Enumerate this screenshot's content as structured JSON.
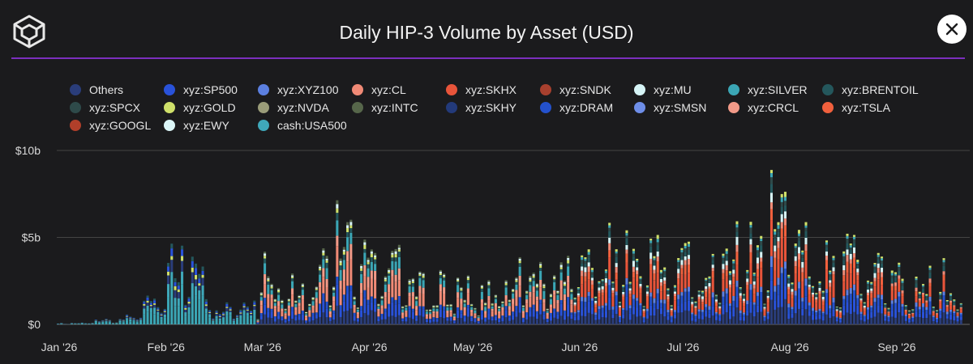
{
  "header": {
    "title": "Daily HIP-3 Volume by Asset (USD)",
    "close_icon": "close-icon",
    "logo_icon": "cube-logo-icon"
  },
  "colors": {
    "accent": "#7b2fbe",
    "background": "#1b1b1d"
  },
  "chart_data": {
    "type": "bar",
    "stacked": true,
    "title": "Daily HIP-3 Volume by Asset (USD)",
    "xlabel": "",
    "ylabel": "",
    "ylim": [
      0,
      10000000000
    ],
    "y_ticks": [
      {
        "value": 0,
        "label": "$0"
      },
      {
        "value": 5000000000,
        "label": "$5b"
      },
      {
        "value": 10000000000,
        "label": "$10b"
      }
    ],
    "x_ticks": [
      "Jan '26",
      "Feb '26",
      "Mar '26",
      "Apr '26",
      "May '26",
      "Jun '26",
      "Jul '26",
      "Aug '26",
      "Sep '26"
    ],
    "grid": true,
    "legend_position": "top",
    "series": [
      {
        "name": "Others",
        "color": "#2a3d7a"
      },
      {
        "name": "xyz:SP500",
        "color": "#2952d9"
      },
      {
        "name": "xyz:XYZ100",
        "color": "#5b7fe0"
      },
      {
        "name": "xyz:CL",
        "color": "#f08a76"
      },
      {
        "name": "xyz:SKHX",
        "color": "#e8543a"
      },
      {
        "name": "xyz:SNDK",
        "color": "#a8402e"
      },
      {
        "name": "xyz:MU",
        "color": "#d6f4f6"
      },
      {
        "name": "xyz:SILVER",
        "color": "#3ba6b5"
      },
      {
        "name": "xyz:BRENTOIL",
        "color": "#24575c"
      },
      {
        "name": "xyz:SPCX",
        "color": "#2e4a4a"
      },
      {
        "name": "xyz:GOLD",
        "color": "#cfe06a"
      },
      {
        "name": "xyz:NVDA",
        "color": "#9a9c79"
      },
      {
        "name": "xyz:INTC",
        "color": "#56664a"
      },
      {
        "name": "xyz:SKHY",
        "color": "#233a7a"
      },
      {
        "name": "xyz:DRAM",
        "color": "#2451cc"
      },
      {
        "name": "xyz:SMSN",
        "color": "#6e8ee8"
      },
      {
        "name": "xyz:CRCL",
        "color": "#f29a88"
      },
      {
        "name": "xyz:TSLA",
        "color": "#f0603d"
      },
      {
        "name": "xyz:GOOGL",
        "color": "#b13f2a"
      },
      {
        "name": "xyz:EWY",
        "color": "#dcf6f8"
      },
      {
        "name": "cash:USA500",
        "color": "#3fa8ba"
      }
    ],
    "x_range": [
      "2026-01-01",
      "2026-09-20"
    ],
    "daily_totals": [
      {
        "date": "2026-01-01",
        "value": 60000000
      },
      {
        "date": "2026-01-10",
        "value": 150000000
      },
      {
        "date": "2026-01-20",
        "value": 600000000
      },
      {
        "date": "2026-01-25",
        "value": 900000000
      },
      {
        "date": "2026-01-31",
        "value": 2200000000
      },
      {
        "date": "2026-02-02",
        "value": 5000000000
      },
      {
        "date": "2026-02-06",
        "value": 3600000000
      },
      {
        "date": "2026-02-08",
        "value": 5200000000
      },
      {
        "date": "2026-02-15",
        "value": 1200000000
      },
      {
        "date": "2026-02-28",
        "value": 1600000000
      },
      {
        "date": "2026-03-01",
        "value": 4000000000
      },
      {
        "date": "2026-03-15",
        "value": 2500000000
      },
      {
        "date": "2026-03-23",
        "value": 5900000000
      },
      {
        "date": "2026-04-01",
        "value": 3700000000
      },
      {
        "date": "2026-04-06",
        "value": 5300000000
      },
      {
        "date": "2026-04-15",
        "value": 2500000000
      },
      {
        "date": "2026-05-01",
        "value": 2400000000
      },
      {
        "date": "2026-05-15",
        "value": 3500000000
      },
      {
        "date": "2026-06-01",
        "value": 3800000000
      },
      {
        "date": "2026-06-10",
        "value": 4700000000
      },
      {
        "date": "2026-06-25",
        "value": 5000000000
      },
      {
        "date": "2026-07-05",
        "value": 3500000000
      },
      {
        "date": "2026-07-15",
        "value": 5100000000
      },
      {
        "date": "2026-07-25",
        "value": 5600000000
      },
      {
        "date": "2026-07-30",
        "value": 9100000000
      },
      {
        "date": "2026-08-02",
        "value": 6200000000
      },
      {
        "date": "2026-08-10",
        "value": 4000000000
      },
      {
        "date": "2026-08-20",
        "value": 5200000000
      },
      {
        "date": "2026-09-01",
        "value": 2500000000
      },
      {
        "date": "2026-09-15",
        "value": 3100000000
      },
      {
        "date": "2026-09-20",
        "value": 2300000000
      }
    ]
  }
}
